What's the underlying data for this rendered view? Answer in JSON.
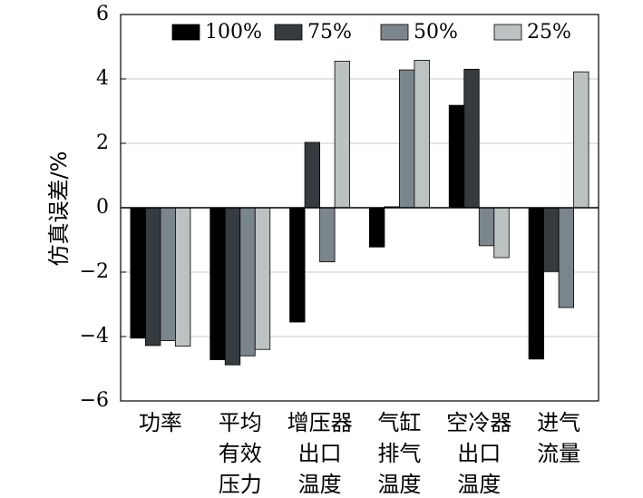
{
  "chart_data": {
    "type": "bar",
    "title": "",
    "xlabel": "",
    "ylabel": "仿真误差/%",
    "ylim": [
      -6,
      6
    ],
    "yticks": [
      "−6",
      "−4",
      "−2",
      "0",
      "2",
      "4",
      "6"
    ],
    "ytick_values": [
      -6,
      -4,
      -2,
      0,
      2,
      4,
      6
    ],
    "grid": true,
    "legend_position": "top",
    "categories": [
      [
        "功率"
      ],
      [
        "平均",
        "有效",
        "压力"
      ],
      [
        "增压器",
        "出口",
        "温度"
      ],
      [
        "气缸",
        "排气",
        "温度"
      ],
      [
        "空冷器",
        "出口",
        "温度"
      ],
      [
        "进气",
        "流量"
      ]
    ],
    "series": [
      {
        "name": "100%",
        "color": "#000000",
        "values": [
          -4.05,
          -4.72,
          -3.55,
          -1.22,
          3.18,
          -4.7
        ]
      },
      {
        "name": "75%",
        "color": "#363b40",
        "values": [
          -4.28,
          -4.88,
          2.03,
          0.03,
          4.3,
          -1.98
        ]
      },
      {
        "name": "50%",
        "color": "#7b858c",
        "values": [
          -4.13,
          -4.6,
          -1.68,
          4.28,
          -1.18,
          -3.1
        ]
      },
      {
        "name": "25%",
        "color": "#bcc2c2",
        "values": [
          -4.3,
          -4.4,
          4.55,
          4.58,
          -1.55,
          4.22
        ]
      }
    ]
  }
}
